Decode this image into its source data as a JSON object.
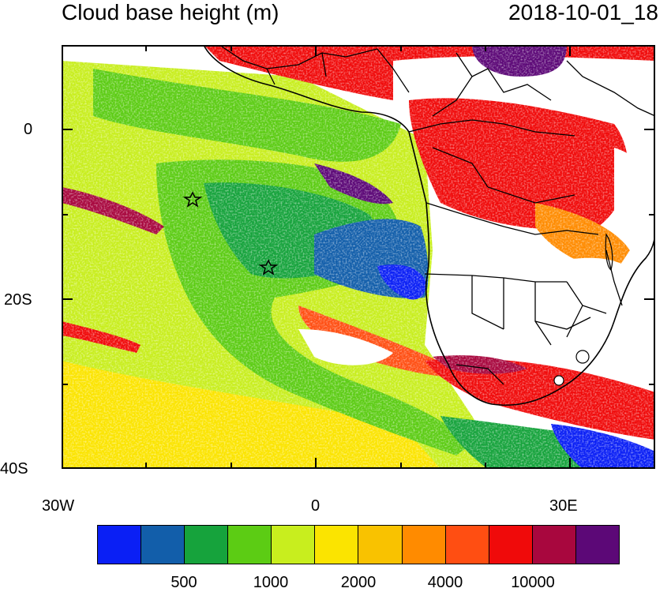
{
  "title_left": "Cloud base height (m)",
  "title_right": "2018-10-01_18",
  "axes": {
    "y_ticks": [
      "0",
      "20S",
      "40S"
    ],
    "x_ticks": [
      "30W",
      "0",
      "30E"
    ]
  },
  "colorbar": {
    "colors": [
      "#0a1ff5",
      "#125eaa",
      "#16a33c",
      "#5ccc14",
      "#c8ee1e",
      "#fbe400",
      "#f9c200",
      "#ff8b00",
      "#ff4e12",
      "#f00a0a",
      "#a8073e",
      "#5c0877"
    ],
    "labels": [
      "500",
      "1000",
      "2000",
      "4000",
      "10000"
    ]
  },
  "markers": [
    "star",
    "star"
  ]
}
